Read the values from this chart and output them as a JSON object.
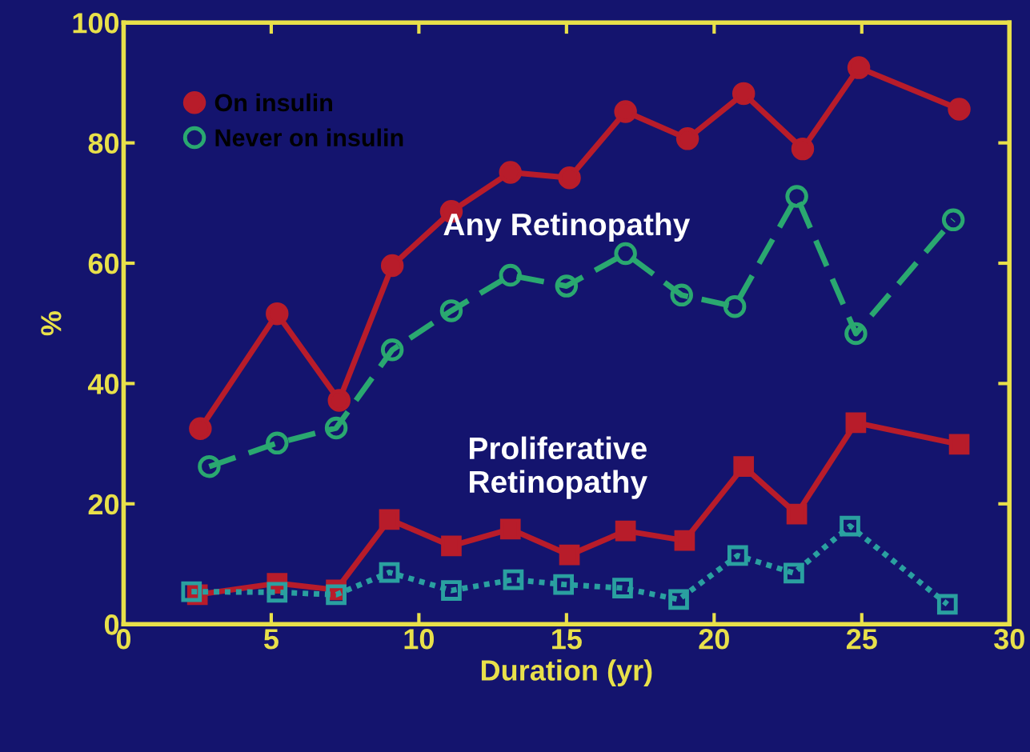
{
  "chart_data": {
    "type": "line",
    "xlabel": "Duration (yr)",
    "ylabel": "%",
    "xlim": [
      0,
      30
    ],
    "ylim": [
      0,
      100
    ],
    "xticks": [
      0,
      5,
      10,
      15,
      20,
      25,
      30
    ],
    "yticks": [
      0,
      20,
      40,
      60,
      80,
      100
    ],
    "grid": false,
    "legend": "top left",
    "series": [
      {
        "name": "On insulin",
        "color": "#b81c2a",
        "marker": "circle",
        "line_style": "solid",
        "x": [
          2.6,
          5.2,
          7.3,
          9.1,
          11.1,
          13.1,
          15.1,
          17.0,
          19.1,
          21.0,
          23.0,
          24.9,
          28.3
        ],
        "values": [
          32.5,
          51.6,
          37.2,
          59.6,
          68.6,
          75.1,
          74.2,
          85.2,
          80.7,
          88.2,
          79.0,
          92.5,
          85.6
        ]
      },
      {
        "name": "Never on insulin",
        "color": "#2aa870",
        "marker": "circle",
        "line_style": "dashed",
        "x": [
          2.9,
          5.2,
          7.2,
          9.1,
          11.1,
          13.1,
          15.0,
          17.0,
          18.9,
          20.7,
          22.8,
          24.8,
          28.1
        ],
        "values": [
          26.2,
          30.1,
          32.6,
          45.6,
          52.1,
          58.0,
          56.2,
          61.6,
          54.7,
          52.8,
          71.1,
          48.3,
          67.2
        ]
      },
      {
        "color": "#b81c2a",
        "marker": "square",
        "line_style": "solid",
        "x": [
          2.5,
          5.2,
          7.2,
          9.0,
          11.1,
          13.1,
          15.1,
          17.0,
          19.0,
          21.0,
          22.8,
          24.8,
          28.3
        ],
        "values": [
          4.9,
          6.8,
          5.7,
          17.4,
          13.0,
          15.8,
          11.5,
          15.5,
          13.9,
          26.2,
          18.3,
          33.5,
          29.9
        ]
      },
      {
        "color": "#2aa0a0",
        "marker": "square",
        "line_style": "dotted",
        "x": [
          2.3,
          5.2,
          7.2,
          9.0,
          11.1,
          13.2,
          14.9,
          16.9,
          18.8,
          20.8,
          22.7,
          24.6,
          27.9
        ],
        "values": [
          5.4,
          5.3,
          4.9,
          8.6,
          5.6,
          7.4,
          6.6,
          6.0,
          4.1,
          11.4,
          8.5,
          16.3,
          3.3
        ]
      }
    ],
    "annotations": [
      "Any Retinopathy",
      "Proliferative\nRetinopathy"
    ]
  }
}
